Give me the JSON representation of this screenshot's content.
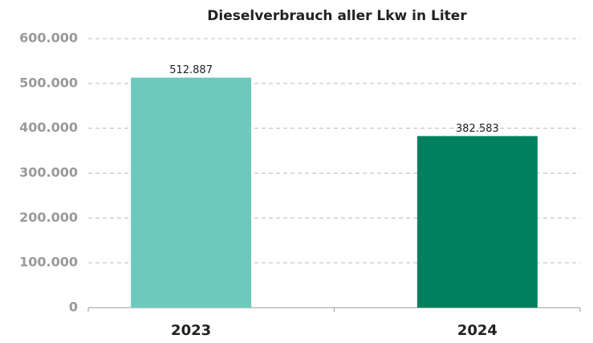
{
  "chart_data": {
    "type": "bar",
    "title": "Dieselverbrauch aller Lkw in Liter",
    "categories": [
      "2023",
      "2024"
    ],
    "values": [
      512887,
      382583
    ],
    "value_labels": [
      "512.887",
      "382.583"
    ],
    "colors": [
      "#6ec9bd",
      "#008060"
    ],
    "ylim": [
      0,
      600000
    ],
    "yticks": [
      0,
      {
        "value": 100000,
        "label": "100.000"
      },
      {
        "value": 200000,
        "label": "200.000"
      },
      {
        "value": 300000,
        "label": "300.000"
      },
      {
        "value": 400000,
        "label": "400.000"
      },
      {
        "value": 500000,
        "label": "500.000"
      },
      {
        "value": 600000,
        "label": "600.000"
      }
    ],
    "grid": true
  }
}
